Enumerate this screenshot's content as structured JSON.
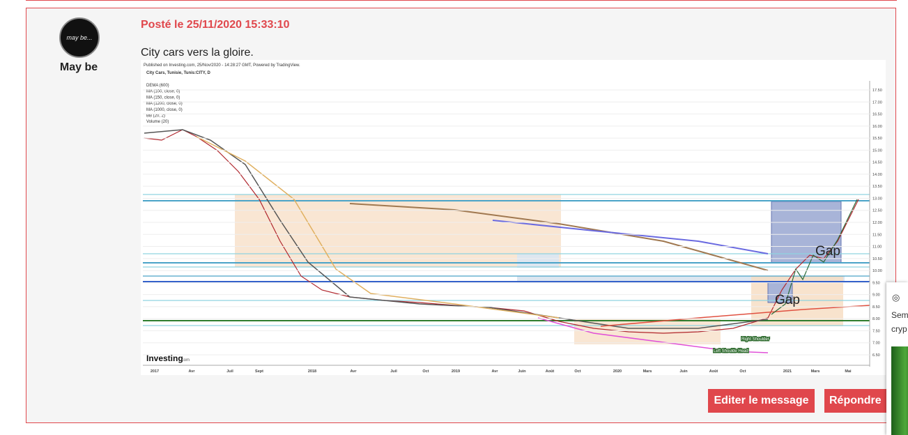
{
  "post": {
    "author": "May be",
    "avatar_text": "may be...",
    "date": "Posté le 25/11/2020 15:33:10",
    "body": "City cars vers la gloire.",
    "buttons": [
      "Editer le message",
      "Répondre"
    ]
  },
  "chart_image": {
    "published": "Published on Investing.com, 25/Nov/2020 - 14:28:27 GMT, Powered by TradingView.",
    "symbol": "City Cars, Tunisie, Tunis:CITY, D",
    "indicators": [
      "DEMA (600)",
      "MA (100, close, 0)",
      "MA (150, close, 0)",
      "MA (1200, close, 0)",
      "MA (1000, close, 0)",
      "BB (20, 2)",
      "Volume (20)"
    ],
    "annotations": [
      "Gap",
      "Gap",
      "Left Shoulde Head",
      "Right Shoulder"
    ],
    "logo": "Investing",
    "logo_suffix": ".com",
    "x_labels": [
      "2017",
      "Avr",
      "Juil",
      "Sept",
      "2018",
      "Avr",
      "Juil",
      "Oct",
      "2019",
      "Avr",
      "Juin",
      "Août",
      "Oct",
      "2020",
      "Mars",
      "Juin",
      "Août",
      "Oct",
      "2021",
      "Mars",
      "Mai"
    ],
    "y_labels": [
      "17.50",
      "17.00",
      "16.50",
      "16.00",
      "15.50",
      "15.00",
      "14.50",
      "14.00",
      "13.50",
      "13.00",
      "12.50",
      "12.00",
      "11.50",
      "11.00",
      "10.50",
      "10.00",
      "9.50",
      "9.00",
      "8.50",
      "8.00",
      "7.50",
      "7.00",
      "6.50"
    ]
  },
  "side_popup": {
    "lines": [
      "Sem",
      "cryp"
    ]
  }
}
